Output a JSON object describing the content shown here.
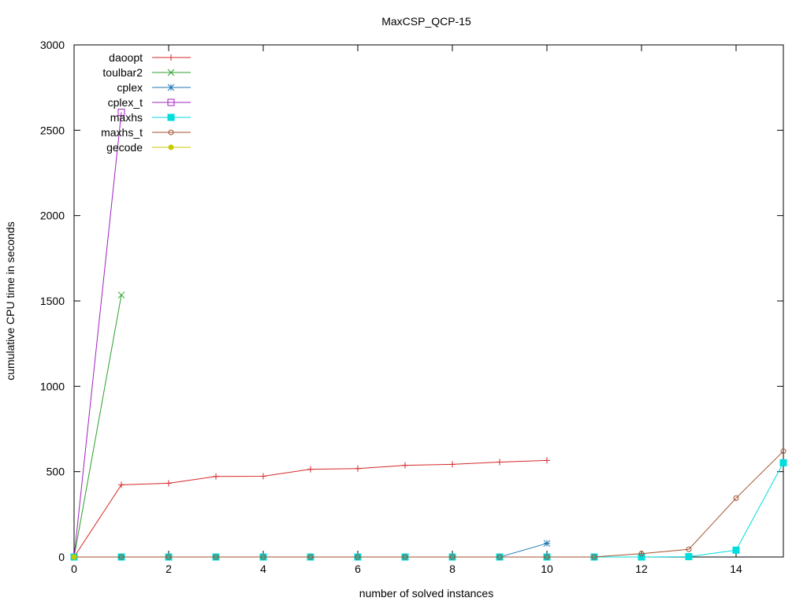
{
  "chart_data": {
    "type": "line",
    "title": "MaxCSP_QCP-15",
    "xlabel": "number of solved instances",
    "ylabel": "cumulative CPU time in seconds",
    "xlim": [
      0,
      15
    ],
    "ylim": [
      0,
      3000
    ],
    "xticks": [
      0,
      2,
      4,
      6,
      8,
      10,
      12,
      14
    ],
    "yticks": [
      0,
      500,
      1000,
      1500,
      2000,
      2500,
      3000
    ],
    "grid": false,
    "legend_position": "top-left",
    "series": [
      {
        "name": "daoopt",
        "color": "#d62728",
        "marker": "plus",
        "x": [
          0,
          1,
          2,
          3,
          4,
          5,
          6,
          7,
          8,
          9,
          10
        ],
        "y": [
          0,
          423,
          432,
          472,
          473,
          514,
          518,
          537,
          543,
          556,
          566
        ]
      },
      {
        "name": "toulbar2",
        "color": "#2ca02c",
        "marker": "cross",
        "x": [
          0,
          1
        ],
        "y": [
          0,
          1535
        ]
      },
      {
        "name": "cplex",
        "color": "#1f77b4",
        "marker": "star",
        "x": [
          0,
          1,
          2,
          3,
          4,
          5,
          6,
          7,
          8,
          9,
          10
        ],
        "y": [
          0,
          0,
          0,
          0,
          0,
          0,
          0,
          0,
          0,
          0,
          80
        ]
      },
      {
        "name": "cplex_t",
        "color": "#a020c0",
        "marker": "open-square",
        "x": [
          0,
          1
        ],
        "y": [
          0,
          2605
        ]
      },
      {
        "name": "maxhs",
        "color": "#00dddd",
        "marker": "filled-square",
        "x": [
          0,
          1,
          2,
          3,
          4,
          5,
          6,
          7,
          8,
          9,
          10,
          11,
          12,
          13,
          14,
          15
        ],
        "y": [
          0,
          0,
          0,
          0,
          0,
          0,
          0,
          0,
          0,
          0,
          0,
          0,
          0,
          2,
          40,
          552
        ]
      },
      {
        "name": "maxhs_t",
        "color": "#a0522d",
        "marker": "open-circle",
        "x": [
          0,
          1,
          2,
          3,
          4,
          5,
          6,
          7,
          8,
          9,
          10,
          11,
          12,
          13,
          14,
          15
        ],
        "y": [
          0,
          0,
          0,
          0,
          0,
          0,
          0,
          0,
          0,
          0,
          0,
          0,
          20,
          45,
          345,
          620
        ]
      },
      {
        "name": "gecode",
        "color": "#c8c800",
        "marker": "filled-circle",
        "x": [
          0
        ],
        "y": [
          0
        ]
      }
    ]
  }
}
